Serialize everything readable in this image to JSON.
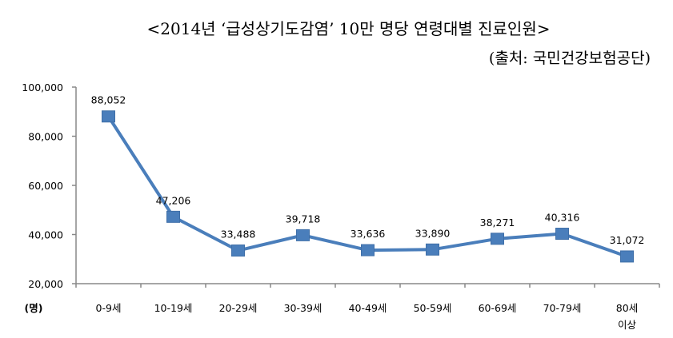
{
  "chart_data": {
    "type": "line",
    "title": "<2014년 ‘급성상기도감염’ 10만 명당 연령대별 진료인원>",
    "subtitle": "(출처: 국민건강보험공단)",
    "xlabel": "",
    "ylabel": "(명)",
    "categories": [
      "0-9세",
      "10-19세",
      "20-29세",
      "30-39세",
      "40-49세",
      "50-59세",
      "60-69세",
      "70-79세",
      "80세\n이상"
    ],
    "category_lines": [
      [
        "0-9세"
      ],
      [
        "10-19세"
      ],
      [
        "20-29세"
      ],
      [
        "30-39세"
      ],
      [
        "40-49세"
      ],
      [
        "50-59세"
      ],
      [
        "60-69세"
      ],
      [
        "70-79세"
      ],
      [
        "80세",
        "이상"
      ]
    ],
    "values": [
      88052,
      47206,
      33488,
      39718,
      33636,
      33890,
      38271,
      40316,
      31072
    ],
    "data_labels": [
      "88,052",
      "47,206",
      "33,488",
      "39,718",
      "33,636",
      "33,890",
      "38,271",
      "40,316",
      "31,072"
    ],
    "yticks": [
      20000,
      40000,
      60000,
      80000,
      100000
    ],
    "ytick_labels": [
      "20,000",
      "40,000",
      "60,000",
      "80,000",
      "100,000"
    ],
    "ylim": [
      20000,
      100000
    ],
    "grid": false,
    "legend": "none",
    "color": "#4a7ebb"
  }
}
